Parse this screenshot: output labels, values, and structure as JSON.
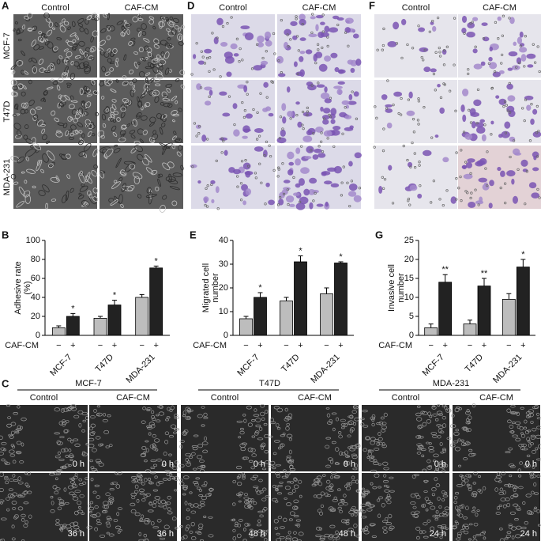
{
  "panel_a": {
    "label": "A",
    "columns": [
      "Control",
      "CAF-CM"
    ],
    "rows": [
      "MCF-7",
      "T47D",
      "MDA-231"
    ]
  },
  "panel_d": {
    "label": "D",
    "columns": [
      "Control",
      "CAF-CM"
    ]
  },
  "panel_f": {
    "label": "F",
    "columns": [
      "Control",
      "CAF-CM"
    ]
  },
  "panel_c": {
    "label": "C",
    "columns": [
      "Control",
      "CAF-CM"
    ],
    "groups": [
      {
        "name": "MCF-7",
        "times": [
          "0 h",
          "36 h"
        ]
      },
      {
        "name": "T47D",
        "times": [
          "0 h",
          "48 h"
        ]
      },
      {
        "name": "MDA-231",
        "times": [
          "0 h",
          "24 h"
        ]
      }
    ]
  },
  "chart_data": [
    {
      "type": "bar",
      "label": "B",
      "y_label": [
        "Adhesive rate",
        "(%)"
      ],
      "treatment_label": "CAF-CM",
      "categories": [
        "MCF-7",
        "T47D",
        "MDA-231"
      ],
      "series": [
        {
          "name": "−",
          "color": "#bdbdbd",
          "values": [
            8,
            18,
            40
          ],
          "errors": [
            2,
            2,
            3
          ]
        },
        {
          "name": "+",
          "color": "#222222",
          "values": [
            20,
            32,
            71
          ],
          "errors": [
            3,
            5,
            2
          ],
          "significance": [
            "*",
            "*",
            "*"
          ]
        }
      ],
      "ylim": [
        0,
        100
      ],
      "yticks": [
        0,
        20,
        40,
        60,
        80,
        100
      ]
    },
    {
      "type": "bar",
      "label": "E",
      "y_label": [
        "Migrated cell",
        "number"
      ],
      "treatment_label": "CAF-CM",
      "categories": [
        "MCF-7",
        "T47D",
        "MDA-231"
      ],
      "series": [
        {
          "name": "−",
          "color": "#bdbdbd",
          "values": [
            7,
            14.5,
            17.5
          ],
          "errors": [
            1,
            1.5,
            2.5
          ]
        },
        {
          "name": "+",
          "color": "#222222",
          "values": [
            16,
            31,
            30.5
          ],
          "errors": [
            2,
            2.5,
            0.5
          ],
          "significance": [
            "*",
            "*",
            "*"
          ]
        }
      ],
      "ylim": [
        0,
        40
      ],
      "yticks": [
        0,
        10,
        20,
        30,
        40
      ]
    },
    {
      "type": "bar",
      "label": "G",
      "y_label": [
        "Invasive cell",
        "number"
      ],
      "treatment_label": "CAF-CM",
      "categories": [
        "MCF-7",
        "T47D",
        "MDA-231"
      ],
      "series": [
        {
          "name": "−",
          "color": "#bdbdbd",
          "values": [
            2,
            3,
            9.5
          ],
          "errors": [
            1,
            1,
            1.5
          ]
        },
        {
          "name": "+",
          "color": "#222222",
          "values": [
            14,
            13,
            18
          ],
          "errors": [
            2,
            2,
            2
          ],
          "significance": [
            "**",
            "**",
            "*"
          ]
        }
      ],
      "ylim": [
        0,
        25
      ],
      "yticks": [
        0,
        5,
        10,
        15,
        20,
        25
      ]
    }
  ]
}
